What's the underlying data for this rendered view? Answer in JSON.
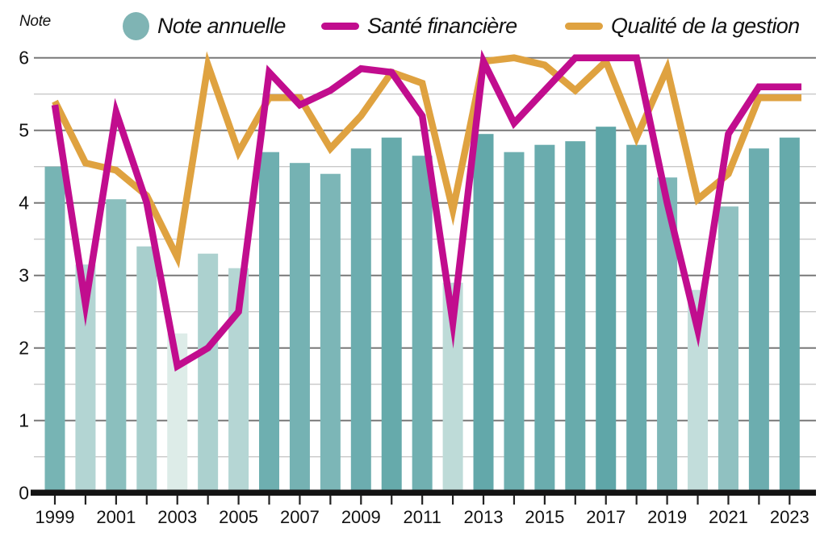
{
  "axis_note_label": "Note",
  "legend": {
    "items": [
      {
        "label": "Note annuelle",
        "color": "#7fb4b4",
        "swatch": "dot"
      },
      {
        "label": "Santé financière",
        "color": "#c10d8e",
        "swatch": "line"
      },
      {
        "label": "Qualité de la gestion",
        "color": "#dfa240",
        "swatch": "line"
      }
    ]
  },
  "chart_data": {
    "type": "bar+line",
    "title": "",
    "ylabel": "Note",
    "xlabel": "",
    "ylim": [
      0,
      6
    ],
    "ytick_labels": [
      "0",
      "1",
      "2",
      "3",
      "4",
      "5",
      "6"
    ],
    "ytick_minor_step": 0.5,
    "grid": "horizontal, minor lines at 0.5 steps",
    "legend_position": "top",
    "x": [
      1999,
      2000,
      2001,
      2002,
      2003,
      2004,
      2005,
      2006,
      2007,
      2008,
      2009,
      2010,
      2011,
      2012,
      2013,
      2014,
      2015,
      2016,
      2017,
      2018,
      2019,
      2020,
      2021,
      2022,
      2023
    ],
    "x_tick_labels_shown": [
      "1999",
      "2001",
      "2003",
      "2005",
      "2007",
      "2009",
      "2011",
      "2013",
      "2015",
      "2017",
      "2019",
      "2021",
      "2023"
    ],
    "series": [
      {
        "name": "Note annuelle",
        "type": "bar",
        "color_scale": {
          "min_value": 2.2,
          "max_value": 5.05,
          "min_color": "#ddece8",
          "max_color": "#5fa6a8"
        },
        "values": [
          4.5,
          3.15,
          4.05,
          3.4,
          2.2,
          3.3,
          3.1,
          4.7,
          4.55,
          4.4,
          4.75,
          4.9,
          4.65,
          2.9,
          4.95,
          4.7,
          4.8,
          4.85,
          5.05,
          4.8,
          4.35,
          2.8,
          3.95,
          4.75,
          4.9
        ]
      },
      {
        "name": "Santé financière",
        "type": "line",
        "color": "#c10d8e",
        "values": [
          5.35,
          2.6,
          5.25,
          4.0,
          1.75,
          2.0,
          2.5,
          5.8,
          5.35,
          5.55,
          5.85,
          5.8,
          5.2,
          2.35,
          5.95,
          5.1,
          5.55,
          6.0,
          6.0,
          6.0,
          4.0,
          2.25,
          4.95,
          5.6,
          5.6
        ]
      },
      {
        "name": "Qualité de la gestion",
        "type": "line",
        "color": "#dfa240",
        "values": [
          5.4,
          4.55,
          4.45,
          4.1,
          3.25,
          5.9,
          4.7,
          5.45,
          5.45,
          4.75,
          5.2,
          5.8,
          5.65,
          3.9,
          5.95,
          6.0,
          5.9,
          5.55,
          5.95,
          4.9,
          5.85,
          4.05,
          4.4,
          5.45,
          5.45
        ]
      }
    ]
  }
}
